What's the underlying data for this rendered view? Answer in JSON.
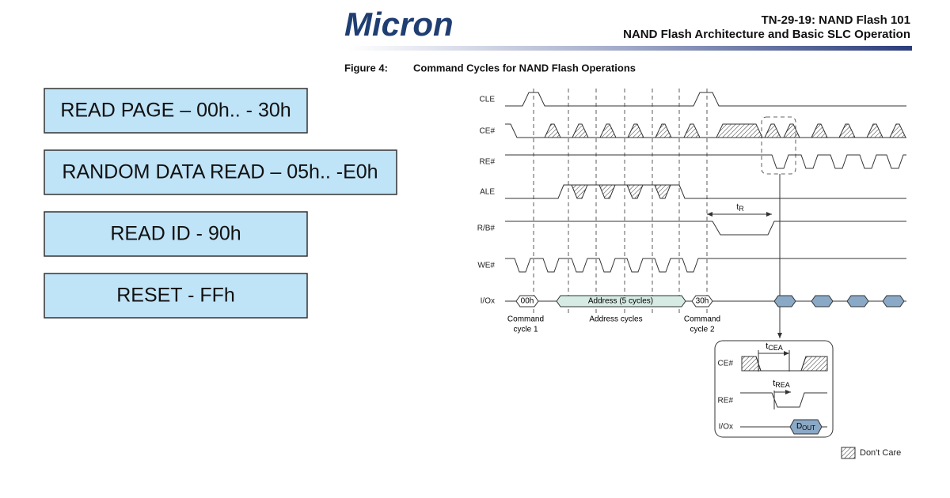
{
  "header": {
    "logo": "Micron",
    "doc_id": "TN-29-19: NAND Flash 101",
    "doc_title": "NAND Flash Architecture and Basic SLC Operation"
  },
  "figure": {
    "label": "Figure 4:",
    "title": "Command Cycles for NAND Flash Operations"
  },
  "commands": [
    "READ PAGE – 00h.. - 30h",
    "RANDOM DATA READ – 05h.. -E0h",
    "READ ID - 90h",
    "RESET - FFh"
  ],
  "diagram": {
    "signals": [
      "CLE",
      "CE#",
      "RE#",
      "ALE",
      "R/B#",
      "WE#",
      "I/Ox"
    ],
    "bus_labels": [
      "00h",
      "Address (5 cycles)",
      "30h"
    ],
    "cycles": [
      [
        "Command",
        "cycle 1"
      ],
      [
        "Address cycles"
      ],
      [
        "Command",
        "cycle 2"
      ]
    ],
    "t_r": {
      "symbol": "t",
      "sub": "R"
    }
  },
  "inset": {
    "signals": [
      "CE#",
      "RE#",
      "I/Ox"
    ],
    "t_cea": {
      "symbol": "t",
      "sub": "CEA"
    },
    "t_rea": {
      "symbol": "t",
      "sub": "REA"
    },
    "d_out": {
      "symbol": "D",
      "sub": "OUT"
    }
  },
  "legend": "Don't Care"
}
